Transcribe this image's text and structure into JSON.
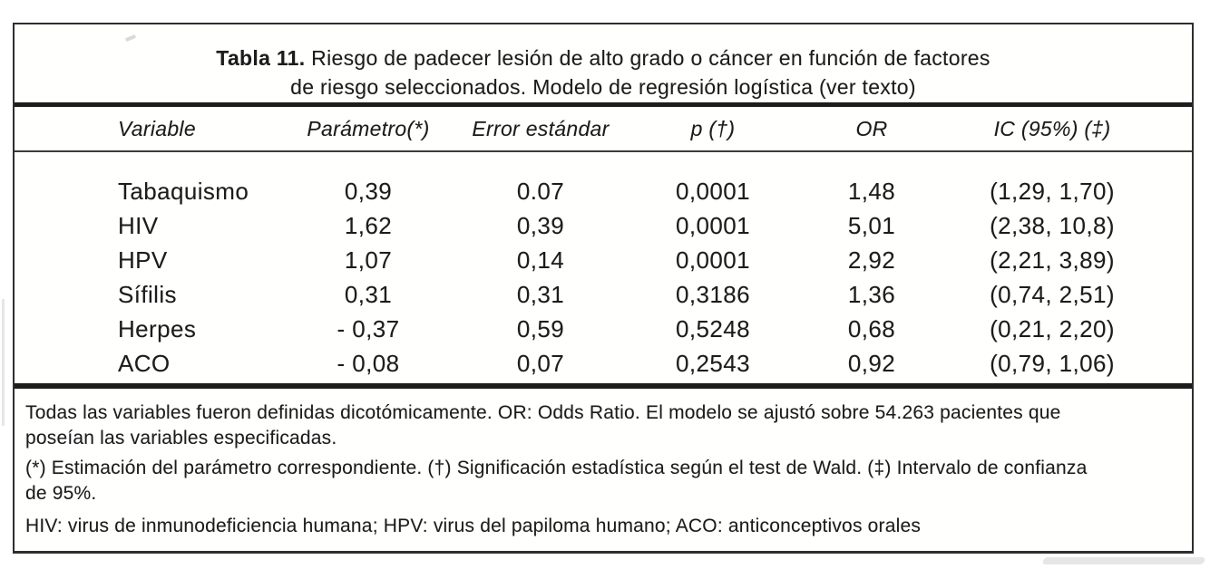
{
  "colors": {
    "ink": "#1c1c1c",
    "rule": "#1d1d1d",
    "paper": "#ffffff"
  },
  "title": {
    "bold": "Tabla 11.",
    "line1_rest": " Riesgo de padecer lesión de alto grado o cáncer en función de factores",
    "line2": "de riesgo seleccionados. Modelo de regresión logística (ver texto)"
  },
  "columns": {
    "variable": "Variable",
    "parametro": "Parámetro(*)",
    "error": "Error estándar",
    "p": "p (†)",
    "or": "OR",
    "ic": "IC (95%) (‡)"
  },
  "rows": [
    {
      "variable": "Tabaquismo",
      "parametro": "0,39",
      "error": "0.07",
      "p": "0,0001",
      "or": "1,48",
      "ic": "(1,29, 1,70)"
    },
    {
      "variable": "HIV",
      "parametro": "1,62",
      "error": "0,39",
      "p": "0,0001",
      "or": "5,01",
      "ic": "(2,38, 10,8)"
    },
    {
      "variable": "HPV",
      "parametro": "1,07",
      "error": "0,14",
      "p": "0,0001",
      "or": "2,92",
      "ic": "(2,21, 3,89)"
    },
    {
      "variable": "Sífilis",
      "parametro": "0,31",
      "error": "0,31",
      "p": "0,3186",
      "or": "1,36",
      "ic": "(0,74, 2,51)"
    },
    {
      "variable": "Herpes",
      "parametro": "- 0,37",
      "error": "0,59",
      "p": "0,5248",
      "or": "0,68",
      "ic": "(0,21, 2,20)"
    },
    {
      "variable": "ACO",
      "parametro": "- 0,08",
      "error": "0,07",
      "p": "0,2543",
      "or": "0,92",
      "ic": "(0,79, 1,06)"
    }
  ],
  "footnotes": {
    "definitions": "Todas las variables fueron definidas dicotómicamente. OR: Odds Ratio. El modelo se ajustó sobre 54.263 pacientes que\nposeían las variables especificadas.",
    "symbols": "(*) Estimación del parámetro correspondiente. (†) Significación estadística según el test de Wald. (‡) Intervalo de confianza\nde 95%.",
    "abbreviations": "HIV: virus de inmunodeficiencia humana; HPV: virus del papiloma humano; ACO: anticonceptivos orales"
  }
}
